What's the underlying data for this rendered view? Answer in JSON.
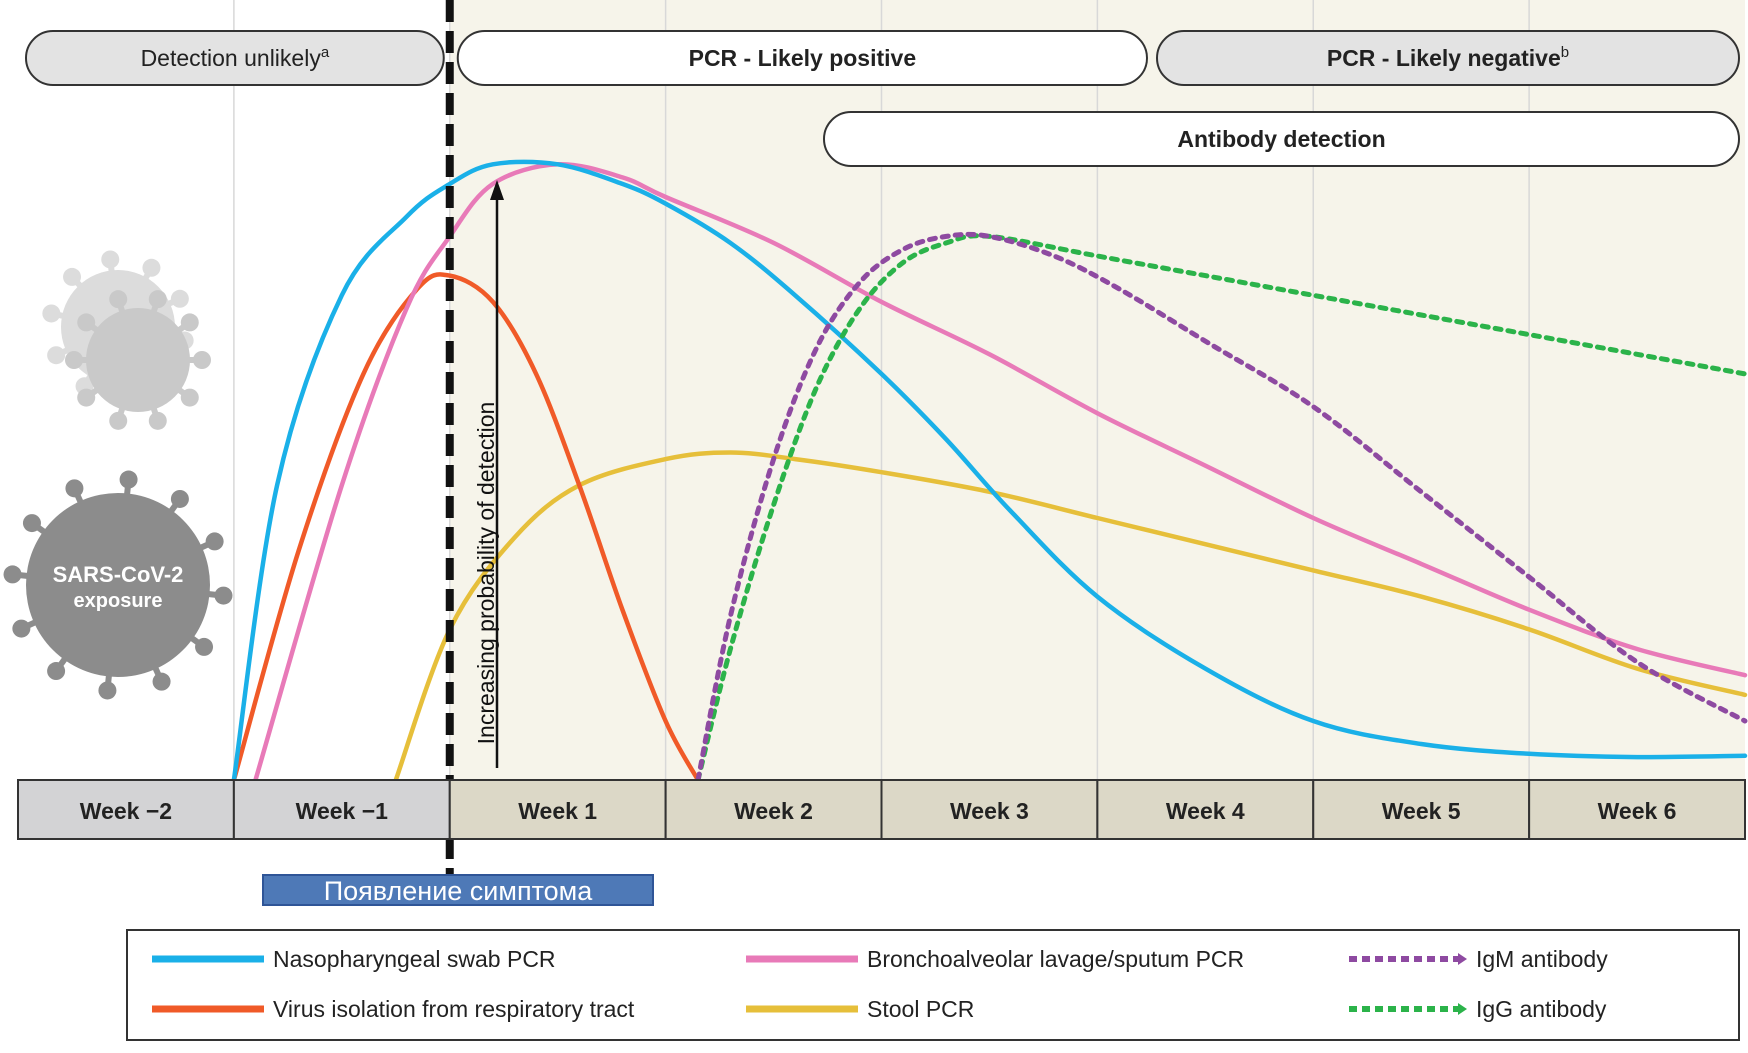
{
  "chart_data": {
    "type": "line",
    "ylabel": "Increasing probability of detection",
    "x_unit": "week",
    "xlim": [
      -2,
      6
    ],
    "ylim": [
      0,
      1
    ],
    "grid": true,
    "legend_placement": "bottom",
    "periods": [
      {
        "label": "Week −2",
        "start": -2,
        "end": -1
      },
      {
        "label": "Week −1",
        "start": -1,
        "end": 0
      },
      {
        "label": "Week 1",
        "start": 0,
        "end": 1
      },
      {
        "label": "Week 2",
        "start": 1,
        "end": 2
      },
      {
        "label": "Week 3",
        "start": 2,
        "end": 3
      },
      {
        "label": "Week 4",
        "start": 3,
        "end": 4
      },
      {
        "label": "Week 5",
        "start": 4,
        "end": 5
      },
      {
        "label": "Week 6",
        "start": 5,
        "end": 6
      }
    ],
    "phase_bands": [
      {
        "label": "Detection unlikely",
        "sup": "a",
        "start": -2,
        "end": 0
      },
      {
        "label": "PCR - Likely positive",
        "sup": "",
        "start": 0,
        "end": 3.2
      },
      {
        "label": "PCR - Likely negative",
        "sup": "b",
        "start": 3.3,
        "end": 6
      },
      {
        "label": "Antibody detection",
        "sup": "",
        "start": 1.7,
        "end": 6
      }
    ],
    "series": [
      {
        "name": "Nasopharyngeal swab PCR",
        "color": "#1ab0e8",
        "dash": false,
        "x": [
          -1.0,
          -0.8,
          -0.5,
          -0.2,
          0.0,
          0.2,
          0.5,
          0.8,
          1.0,
          1.3,
          1.6,
          2.0,
          2.3,
          2.6,
          3.0,
          3.5,
          4.0,
          4.5,
          5.0,
          5.5,
          6.0
        ],
        "y": [
          0.0,
          0.45,
          0.74,
          0.86,
          0.91,
          0.94,
          0.94,
          0.91,
          0.88,
          0.82,
          0.74,
          0.62,
          0.52,
          0.41,
          0.28,
          0.17,
          0.09,
          0.055,
          0.04,
          0.035,
          0.037
        ]
      },
      {
        "name": "Bronchoalveolar lavage/sputum PCR",
        "color": "#e87ab8",
        "dash": false,
        "x": [
          -0.9,
          -0.5,
          -0.2,
          0.0,
          0.2,
          0.5,
          0.8,
          1.0,
          1.5,
          2.0,
          2.5,
          3.0,
          3.5,
          4.0,
          4.5,
          5.0,
          5.5,
          6.0
        ],
        "y": [
          0.0,
          0.45,
          0.72,
          0.83,
          0.91,
          0.94,
          0.92,
          0.89,
          0.82,
          0.73,
          0.65,
          0.56,
          0.48,
          0.4,
          0.33,
          0.26,
          0.2,
          0.16
        ]
      },
      {
        "name": "Virus isolation from respiratory tract",
        "color": "#f05a28",
        "dash": false,
        "x": [
          -1.0,
          -0.7,
          -0.4,
          -0.15,
          0.0,
          0.2,
          0.4,
          0.6,
          0.8,
          1.0,
          1.15
        ],
        "y": [
          0.0,
          0.35,
          0.62,
          0.75,
          0.77,
          0.73,
          0.62,
          0.45,
          0.26,
          0.09,
          0.0
        ]
      },
      {
        "name": "Stool PCR",
        "color": "#e6bf3a",
        "dash": false,
        "x": [
          -0.25,
          0.0,
          0.3,
          0.6,
          1.0,
          1.3,
          1.6,
          2.0,
          2.5,
          3.0,
          3.5,
          4.0,
          4.5,
          5.0,
          5.5,
          6.0
        ],
        "y": [
          0.0,
          0.23,
          0.37,
          0.45,
          0.49,
          0.5,
          0.49,
          0.47,
          0.44,
          0.4,
          0.36,
          0.32,
          0.28,
          0.23,
          0.17,
          0.13
        ]
      },
      {
        "name": "IgM antibody",
        "color": "#8e4aa1",
        "dash": true,
        "x": [
          1.15,
          1.3,
          1.5,
          1.7,
          1.9,
          2.1,
          2.3,
          2.5,
          2.8,
          3.1,
          3.5,
          4.0,
          4.5,
          5.0,
          5.5,
          6.0
        ],
        "y": [
          0.0,
          0.25,
          0.49,
          0.66,
          0.76,
          0.81,
          0.83,
          0.83,
          0.8,
          0.75,
          0.67,
          0.57,
          0.44,
          0.31,
          0.18,
          0.09
        ]
      },
      {
        "name": "IgG antibody",
        "color": "#2bb34a",
        "dash": true,
        "x": [
          1.15,
          1.3,
          1.5,
          1.7,
          1.9,
          2.1,
          2.3,
          2.5,
          3.0,
          3.5,
          4.0,
          4.5,
          5.0,
          5.5,
          6.0
        ],
        "y": [
          0.0,
          0.2,
          0.42,
          0.6,
          0.72,
          0.79,
          0.82,
          0.83,
          0.8,
          0.77,
          0.74,
          0.71,
          0.68,
          0.65,
          0.62
        ]
      }
    ]
  },
  "symptom_onset": {
    "label": "Появление симптома",
    "x": 0
  },
  "exposure": {
    "line1": "SARS-CoV-2",
    "line2": "exposure"
  },
  "colors": {
    "late_period_bg": "#f6f4ea",
    "pill_gray": "#e3e3e3",
    "week_gray": "#d3d3d5",
    "week_beige": "#dcd8c7"
  }
}
